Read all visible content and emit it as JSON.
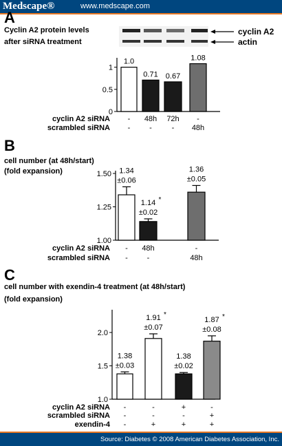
{
  "header": {
    "brand": "Medscape®",
    "url": "www.medscape.com"
  },
  "footer": {
    "source": "Source: Diabetes © 2008 American Diabetes Association, Inc."
  },
  "colors": {
    "header_bg": "#00467f",
    "accent": "#e87722",
    "black_bar": "#1a1a1a",
    "grey_bar": "#6e6e6e",
    "light_grey_bar": "#8a8a8a"
  },
  "chart_data": [
    {
      "panel": "A",
      "type": "bar",
      "title_lines": [
        "Cyclin A2 protein levels",
        "after siRNA treatment"
      ],
      "blot_labels": [
        "cyclin A2",
        "actin"
      ],
      "ylim": [
        0,
        1.15
      ],
      "yticks": [
        "0",
        "0.5",
        "1"
      ],
      "ytick_values": [
        0,
        0.5,
        1
      ],
      "values": [
        1.0,
        0.71,
        0.67,
        1.08
      ],
      "value_labels": [
        "1.0",
        "0.71",
        "0.67",
        "1.08"
      ],
      "row_labels": [
        "cyclin A2 siRNA",
        "scrambled siRNA"
      ],
      "rows": [
        [
          "-",
          "48h",
          "72h",
          "-"
        ],
        [
          "-",
          "-",
          "-",
          "48h"
        ]
      ]
    },
    {
      "panel": "B",
      "type": "bar",
      "title_lines": [
        "cell number (at 48h/start)",
        "(fold expansion)"
      ],
      "ylim": [
        1.0,
        1.5
      ],
      "yticks": [
        "1.00",
        "1.25",
        "1.50"
      ],
      "ytick_values": [
        1.0,
        1.25,
        1.5
      ],
      "values": [
        1.34,
        1.14,
        1.36
      ],
      "errors": [
        0.06,
        0.02,
        0.05
      ],
      "value_labels": [
        "1.34",
        "1.14",
        "1.36"
      ],
      "error_labels": [
        "±0.06",
        "±0.02",
        "±0.05"
      ],
      "significance": [
        "",
        "*",
        ""
      ],
      "row_labels": [
        "cyclin A2 siRNA",
        "scrambled siRNA"
      ],
      "rows": [
        [
          "-",
          "48h",
          "-"
        ],
        [
          "-",
          "-",
          "48h"
        ]
      ]
    },
    {
      "panel": "C",
      "type": "bar",
      "title_lines": [
        "cell number with  exendin-4 treatment (at 48h/start)",
        "(fold expansion)"
      ],
      "ylim": [
        1.0,
        2.3
      ],
      "yticks": [
        "1.0",
        "1.5",
        "2.0"
      ],
      "ytick_values": [
        1.0,
        1.5,
        2.0
      ],
      "values": [
        1.38,
        1.91,
        1.38,
        1.87
      ],
      "errors": [
        0.03,
        0.07,
        0.02,
        0.08
      ],
      "value_labels": [
        "1.38",
        "1.91",
        "1.38",
        "1.87"
      ],
      "error_labels": [
        "±0.03",
        "±0.07",
        "±0.02",
        "±0.08"
      ],
      "significance": [
        "",
        "*",
        "",
        "*"
      ],
      "row_labels": [
        "cyclin A2 siRNA",
        "scrambled siRNA",
        "exendin-4"
      ],
      "rows": [
        [
          "-",
          "-",
          "+",
          "-"
        ],
        [
          "-",
          "-",
          "-",
          "+"
        ],
        [
          "-",
          "+",
          "+",
          "+"
        ]
      ]
    }
  ]
}
